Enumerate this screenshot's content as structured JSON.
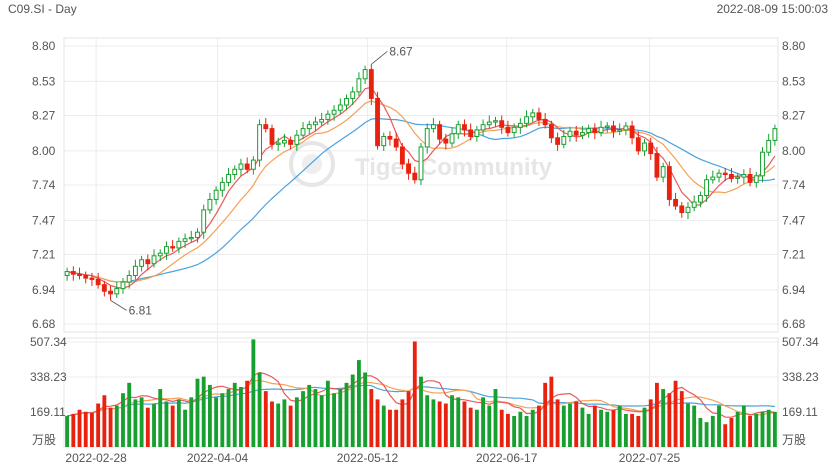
{
  "header": {
    "symbol": "C09.SI - Day",
    "timestamp": "2022-08-09 15:00:03"
  },
  "watermark": {
    "text": "Tiger Community"
  },
  "colors": {
    "up": "#17a02f",
    "down": "#e8220e",
    "ma5": "#e8595b",
    "ma10": "#f5a054",
    "ma20": "#4aa3de",
    "grid": "#ececec"
  },
  "chart_data": [
    {
      "type": "candlestick",
      "ylim": [
        6.68,
        8.8
      ],
      "y_ticks": [
        "8.80",
        "8.53",
        "8.27",
        "8.00",
        "7.74",
        "7.47",
        "7.21",
        "6.94",
        "6.68"
      ],
      "x_ticks": [
        "2022-02-28",
        "2022-04-04",
        "2022-05-12",
        "2022-06-17",
        "2022-07-25"
      ],
      "annotations": [
        {
          "label": "8.67",
          "kind": "high"
        },
        {
          "label": "6.81",
          "kind": "low"
        }
      ],
      "close": [
        7.08,
        7.06,
        7.05,
        7.03,
        7.02,
        6.98,
        6.93,
        6.91,
        6.95,
        7.0,
        7.05,
        7.12,
        7.17,
        7.14,
        7.2,
        7.22,
        7.27,
        7.26,
        7.31,
        7.33,
        7.34,
        7.38,
        7.55,
        7.63,
        7.7,
        7.76,
        7.82,
        7.86,
        7.9,
        7.86,
        7.93,
        8.2,
        8.17,
        8.05,
        8.06,
        8.08,
        8.05,
        8.12,
        8.17,
        8.2,
        8.22,
        8.24,
        8.28,
        8.31,
        8.35,
        8.4,
        8.45,
        8.55,
        8.62,
        8.4,
        8.04,
        8.11,
        8.09,
        8.03,
        7.9,
        7.83,
        7.78,
        8.03,
        8.17,
        8.2,
        8.09,
        8.06,
        8.13,
        8.2,
        8.16,
        8.11,
        8.16,
        8.2,
        8.22,
        8.23,
        8.18,
        8.14,
        8.18,
        8.21,
        8.26,
        8.29,
        8.24,
        8.2,
        8.1,
        8.05,
        8.11,
        8.15,
        8.12,
        8.14,
        8.17,
        8.14,
        8.18,
        8.19,
        8.15,
        8.16,
        8.19,
        8.1,
        8.0,
        8.06,
        7.98,
        7.8,
        7.88,
        7.63,
        7.58,
        7.53,
        7.57,
        7.61,
        7.66,
        7.78,
        7.8,
        7.83,
        7.82,
        7.79,
        7.8,
        7.82,
        7.76,
        7.81,
        7.99,
        8.08,
        8.17
      ]
    },
    {
      "type": "bar",
      "ylim": [
        0,
        507.34
      ],
      "y_ticks": [
        "507.34",
        "338.23",
        "169.11"
      ],
      "unit_label": "万股",
      "values": [
        150,
        160,
        180,
        170,
        165,
        210,
        250,
        190,
        200,
        260,
        310,
        230,
        240,
        190,
        210,
        280,
        220,
        200,
        230,
        180,
        240,
        330,
        340,
        300,
        240,
        260,
        280,
        310,
        290,
        320,
        520,
        360,
        270,
        220,
        210,
        230,
        200,
        240,
        270,
        300,
        280,
        250,
        320,
        260,
        280,
        310,
        350,
        420,
        360,
        280,
        230,
        200,
        180,
        180,
        230,
        270,
        510,
        340,
        250,
        230,
        220,
        210,
        250,
        240,
        220,
        190,
        180,
        240,
        200,
        280,
        180,
        160,
        150,
        170,
        150,
        180,
        200,
        310,
        340,
        230,
        200,
        210,
        220,
        190,
        160,
        200,
        180,
        170,
        180,
        200,
        160,
        160,
        150,
        190,
        230,
        310,
        280,
        260,
        320,
        270,
        210,
        200,
        140,
        120,
        150,
        200,
        110,
        140,
        170,
        200,
        150,
        160,
        170,
        180,
        170
      ]
    }
  ]
}
